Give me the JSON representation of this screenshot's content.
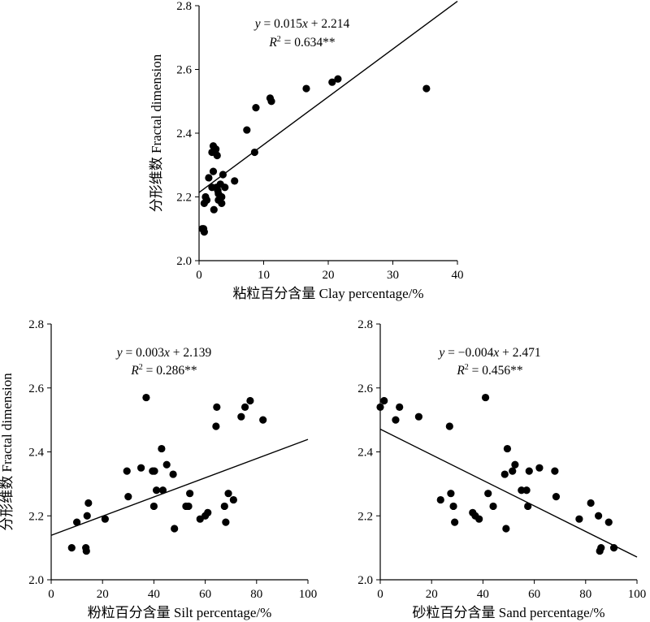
{
  "chart_data": [
    {
      "type": "scatter",
      "id": "clay",
      "xlabel": "粘粒百分含量 Clay percentage/%",
      "ylabel": "分形维数 Fractal dimension",
      "xlim": [
        0,
        40
      ],
      "ylim": [
        2.0,
        2.8
      ],
      "xticks": [
        "0",
        "10",
        "20",
        "30",
        "40"
      ],
      "yticks": [
        "2.0",
        "2.2",
        "2.4",
        "2.6",
        "2.8"
      ],
      "fit": {
        "slope": 0.015,
        "intercept": 2.214
      },
      "equation": {
        "prefix": "y",
        "middle": " = 0.015",
        "x": "x",
        "suffix": " + 2.214",
        "r2_r": "R",
        "r2_sup": "2",
        "r2_value": " = 0.634**"
      },
      "points": [
        [
          0.5,
          2.1
        ],
        [
          0.8,
          2.09
        ],
        [
          0.7,
          2.1
        ],
        [
          0.8,
          2.18
        ],
        [
          1.0,
          2.2
        ],
        [
          1.2,
          2.19
        ],
        [
          1.5,
          2.26
        ],
        [
          2.0,
          2.23
        ],
        [
          2.2,
          2.28
        ],
        [
          2.0,
          2.34
        ],
        [
          2.2,
          2.36
        ],
        [
          2.5,
          2.34
        ],
        [
          2.6,
          2.35
        ],
        [
          2.8,
          2.33
        ],
        [
          2.3,
          2.16
        ],
        [
          2.7,
          2.23
        ],
        [
          2.9,
          2.22
        ],
        [
          3.0,
          2.21
        ],
        [
          3.0,
          2.19
        ],
        [
          3.3,
          2.24
        ],
        [
          3.5,
          2.2
        ],
        [
          3.7,
          2.27
        ],
        [
          3.5,
          2.18
        ],
        [
          4.0,
          2.23
        ],
        [
          5.5,
          2.25
        ],
        [
          7.4,
          2.41
        ],
        [
          8.6,
          2.34
        ],
        [
          8.8,
          2.48
        ],
        [
          11.0,
          2.51
        ],
        [
          11.2,
          2.5
        ],
        [
          16.6,
          2.54
        ],
        [
          20.6,
          2.56
        ],
        [
          21.5,
          2.57
        ],
        [
          35.2,
          2.54
        ]
      ]
    },
    {
      "type": "scatter",
      "id": "silt",
      "xlabel": "粉粒百分含量 Silt percentage/%",
      "ylabel": "分形维数 Fractal dimension",
      "xlim": [
        0,
        100
      ],
      "ylim": [
        2.0,
        2.8
      ],
      "xticks": [
        "0",
        "20",
        "40",
        "60",
        "80",
        "100"
      ],
      "yticks": [
        "2.0",
        "2.2",
        "2.4",
        "2.6",
        "2.8"
      ],
      "fit": {
        "slope": 0.003,
        "intercept": 2.139
      },
      "equation": {
        "prefix": "y",
        "middle": " = 0.003",
        "x": "x",
        "suffix": " + 2.139",
        "r2_r": "R",
        "r2_sup": "2",
        "r2_value": " = 0.286**"
      },
      "points": [
        [
          8,
          2.1
        ],
        [
          10,
          2.18
        ],
        [
          13.5,
          2.1
        ],
        [
          13.7,
          2.09
        ],
        [
          14,
          2.2
        ],
        [
          14.5,
          2.24
        ],
        [
          21,
          2.19
        ],
        [
          29.5,
          2.34
        ],
        [
          30,
          2.26
        ],
        [
          35,
          2.35
        ],
        [
          37,
          2.57
        ],
        [
          39.5,
          2.34
        ],
        [
          40,
          2.23
        ],
        [
          40.2,
          2.34
        ],
        [
          41,
          2.28
        ],
        [
          43,
          2.41
        ],
        [
          43.5,
          2.28
        ],
        [
          45,
          2.36
        ],
        [
          47.5,
          2.33
        ],
        [
          48,
          2.16
        ],
        [
          52.5,
          2.23
        ],
        [
          53.5,
          2.23
        ],
        [
          54,
          2.27
        ],
        [
          58,
          2.19
        ],
        [
          60,
          2.2
        ],
        [
          61,
          2.21
        ],
        [
          64.5,
          2.54
        ],
        [
          64.2,
          2.48
        ],
        [
          67.5,
          2.23
        ],
        [
          68,
          2.18
        ],
        [
          69,
          2.27
        ],
        [
          71,
          2.25
        ],
        [
          74,
          2.51
        ],
        [
          75.5,
          2.54
        ],
        [
          77.5,
          2.56
        ],
        [
          82.5,
          2.5
        ]
      ]
    },
    {
      "type": "scatter",
      "id": "sand",
      "xlabel": "砂粒百分含量 Sand percentage/%",
      "ylabel": "",
      "xlim": [
        0,
        100
      ],
      "ylim": [
        2.0,
        2.8
      ],
      "xticks": [
        "0",
        "20",
        "40",
        "60",
        "80",
        "100"
      ],
      "yticks": [
        "2.0",
        "2.2",
        "2.4",
        "2.6",
        "2.8"
      ],
      "fit": {
        "slope": -0.004,
        "intercept": 2.471
      },
      "equation": {
        "prefix": "y",
        "middle": " = −0.004",
        "x": "x",
        "suffix": " + 2.471",
        "r2_r": "R",
        "r2_sup": "2",
        "r2_value": " = 0.456**"
      },
      "points": [
        [
          0,
          2.54
        ],
        [
          1.5,
          2.56
        ],
        [
          6,
          2.5
        ],
        [
          7.5,
          2.54
        ],
        [
          15,
          2.51
        ],
        [
          23.5,
          2.25
        ],
        [
          27,
          2.48
        ],
        [
          27.5,
          2.27
        ],
        [
          28.5,
          2.23
        ],
        [
          29,
          2.18
        ],
        [
          36,
          2.21
        ],
        [
          37,
          2.2
        ],
        [
          38.5,
          2.19
        ],
        [
          41,
          2.57
        ],
        [
          42,
          2.27
        ],
        [
          44,
          2.23
        ],
        [
          48.5,
          2.33
        ],
        [
          49,
          2.16
        ],
        [
          49.5,
          2.41
        ],
        [
          51.5,
          2.34
        ],
        [
          52.5,
          2.36
        ],
        [
          55,
          2.28
        ],
        [
          57,
          2.28
        ],
        [
          57.5,
          2.23
        ],
        [
          58,
          2.34
        ],
        [
          62,
          2.35
        ],
        [
          68,
          2.34
        ],
        [
          68.5,
          2.26
        ],
        [
          77.5,
          2.19
        ],
        [
          82,
          2.24
        ],
        [
          85,
          2.2
        ],
        [
          85.5,
          2.09
        ],
        [
          86,
          2.1
        ],
        [
          89,
          2.18
        ],
        [
          91,
          2.1
        ]
      ]
    }
  ]
}
